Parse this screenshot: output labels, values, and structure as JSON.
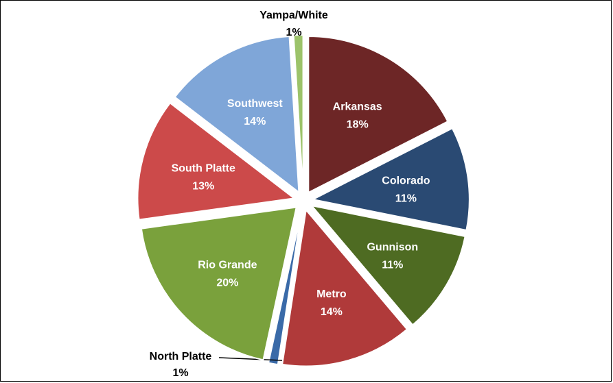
{
  "chart_data": {
    "type": "pie",
    "title": "",
    "slices": [
      {
        "name": "Arkansas",
        "value": 18,
        "pct_label": "18%",
        "color": "#6d2626"
      },
      {
        "name": "Colorado",
        "value": 11,
        "pct_label": "11%",
        "color": "#2a4a73"
      },
      {
        "name": "Gunnison",
        "value": 11,
        "pct_label": "11%",
        "color": "#4e6b22"
      },
      {
        "name": "Metro",
        "value": 14,
        "pct_label": "14%",
        "color": "#b03a3a"
      },
      {
        "name": "North Platte",
        "value": 1,
        "pct_label": "1%",
        "color": "#3a6aa8"
      },
      {
        "name": "Rio Grande",
        "value": 20,
        "pct_label": "20%",
        "color": "#7aa13c"
      },
      {
        "name": "South Platte",
        "value": 13,
        "pct_label": "13%",
        "color": "#cc4a4a"
      },
      {
        "name": "Southwest",
        "value": 14,
        "pct_label": "14%",
        "color": "#7fa6d8"
      },
      {
        "name": "Yampa/White",
        "value": 1,
        "pct_label": "1%",
        "color": "#9cc36a"
      }
    ]
  }
}
